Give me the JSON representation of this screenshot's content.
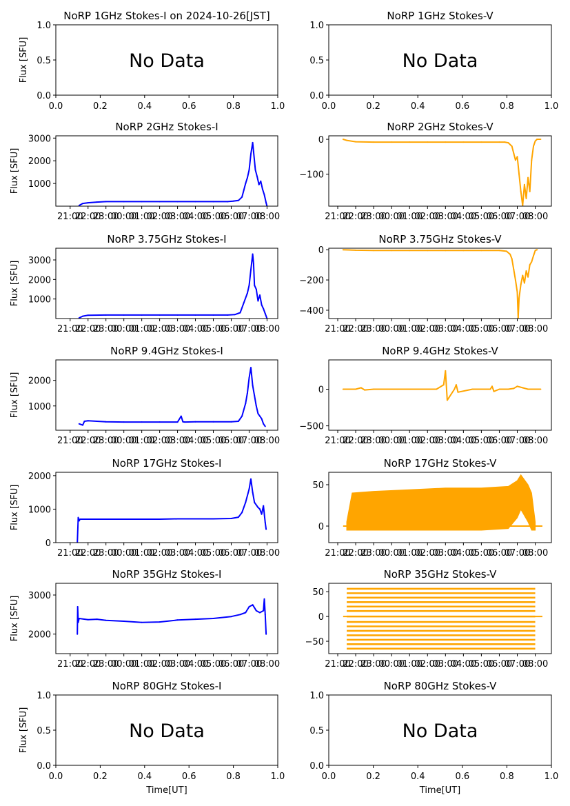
{
  "figure": {
    "xlabel": "Time[UT]",
    "time_ticks": [
      "21:00",
      "22:00",
      "23:00",
      "00:00",
      "01:00",
      "02:00",
      "03:00",
      "04:00",
      "05:00",
      "06:00",
      "07:00",
      "08:00"
    ],
    "colors": {
      "stokes_i": "#0000ff",
      "stokes_v": "#ffa500",
      "axis": "#000000"
    }
  },
  "chart_data": [
    {
      "id": "p1i",
      "type": "line",
      "title": "NoRP 1GHz Stokes-I on 2024-10-26[JST]",
      "ylabel": "Flux [SFU]",
      "no_data": true,
      "no_data_text": "No Data",
      "xlim": [
        0,
        1
      ],
      "ylim": [
        0,
        1
      ],
      "x_tick_labels": [
        "0.0",
        "0.2",
        "0.4",
        "0.6",
        "0.8",
        "1.0"
      ],
      "y_ticks": [
        0,
        0.5,
        1
      ],
      "y_tick_labels": [
        "0.0",
        "0.5",
        "1.0"
      ]
    },
    {
      "id": "p1v",
      "type": "line",
      "title": "NoRP 1GHz Stokes-V",
      "ylabel": "",
      "no_data": true,
      "no_data_text": "No Data",
      "xlim": [
        0,
        1
      ],
      "ylim": [
        0,
        1
      ],
      "x_tick_labels": [
        "0.0",
        "0.2",
        "0.4",
        "0.6",
        "0.8",
        "1.0"
      ],
      "y_ticks": [
        0,
        0.5,
        1
      ],
      "y_tick_labels": [
        "0.0",
        "0.5",
        "1.0"
      ]
    },
    {
      "id": "p2i",
      "type": "line",
      "title": "NoRP 2GHz Stokes-I",
      "ylabel": "Flux [SFU]",
      "no_data": false,
      "color": "#0000ff",
      "xlim": [
        -0.8,
        11.6
      ],
      "ylim": [
        0,
        3100
      ],
      "y_ticks": [
        1000,
        2000,
        3000
      ],
      "y_tick_labels": [
        "1000",
        "2000",
        "3000"
      ],
      "x": [
        0.5,
        0.7,
        1.0,
        1.5,
        2.0,
        3.0,
        4.0,
        5.0,
        6.0,
        7.0,
        8.0,
        8.8,
        9.1,
        9.4,
        9.6,
        9.7,
        9.8,
        9.9,
        10.0,
        10.1,
        10.2,
        10.25,
        10.35,
        10.45,
        10.55,
        10.65,
        10.75,
        10.85,
        10.95,
        11.0
      ],
      "values": [
        30,
        120,
        150,
        180,
        200,
        200,
        200,
        200,
        200,
        200,
        200,
        200,
        220,
        250,
        400,
        700,
        1000,
        1250,
        1600,
        2300,
        2800,
        2400,
        1600,
        1300,
        950,
        1100,
        750,
        500,
        150,
        0
      ]
    },
    {
      "id": "p2v",
      "type": "line",
      "title": "NoRP 2GHz Stokes-V",
      "ylabel": "",
      "no_data": false,
      "color": "#ffa500",
      "xlim": [
        -0.5,
        11.9
      ],
      "ylim": [
        -192,
        10
      ],
      "y_ticks": [
        0,
        -100
      ],
      "y_tick_labels": [
        "0",
        "−100"
      ],
      "x": [
        0.3,
        0.5,
        1.0,
        2.0,
        3.0,
        4.0,
        5.0,
        6.0,
        7.0,
        8.0,
        9.0,
        9.3,
        9.5,
        9.7,
        9.8,
        9.9,
        10.0,
        10.1,
        10.2,
        10.3,
        10.4,
        10.5,
        10.6,
        10.7,
        10.8,
        10.9,
        11.0,
        11.1,
        11.3
      ],
      "values": [
        0,
        -3,
        -7,
        -8,
        -8,
        -8,
        -8,
        -8,
        -8,
        -8,
        -8,
        -8,
        -10,
        -20,
        -40,
        -60,
        -50,
        -100,
        -150,
        -190,
        -130,
        -170,
        -110,
        -150,
        -60,
        -20,
        -5,
        0,
        0
      ]
    },
    {
      "id": "p3i",
      "type": "line",
      "title": "NoRP 3.75GHz Stokes-I",
      "ylabel": "Flux [SFU]",
      "no_data": false,
      "color": "#0000ff",
      "xlim": [
        -0.8,
        11.6
      ],
      "ylim": [
        0,
        3600
      ],
      "y_ticks": [
        1000,
        2000,
        3000
      ],
      "y_tick_labels": [
        "1000",
        "2000",
        "3000"
      ],
      "x": [
        0.5,
        0.7,
        1.0,
        2.0,
        3.0,
        4.0,
        5.0,
        6.0,
        7.0,
        8.0,
        8.8,
        9.2,
        9.5,
        9.7,
        9.9,
        10.0,
        10.1,
        10.2,
        10.25,
        10.3,
        10.4,
        10.5,
        10.6,
        10.7,
        10.8,
        10.9,
        11.0
      ],
      "values": [
        30,
        120,
        170,
        180,
        180,
        180,
        180,
        180,
        180,
        180,
        180,
        200,
        300,
        800,
        1300,
        1700,
        2500,
        3300,
        2800,
        1700,
        1500,
        900,
        1200,
        700,
        500,
        250,
        0
      ]
    },
    {
      "id": "p3v",
      "type": "line",
      "title": "NoRP 3.75GHz Stokes-V",
      "ylabel": "",
      "no_data": false,
      "color": "#ffa500",
      "xlim": [
        -0.5,
        11.9
      ],
      "ylim": [
        -455,
        10
      ],
      "y_ticks": [
        0,
        -200,
        -400
      ],
      "y_tick_labels": [
        "0",
        "−200",
        "−400"
      ],
      "x": [
        0.3,
        1.0,
        2.0,
        3.0,
        4.0,
        5.0,
        6.0,
        7.0,
        8.0,
        9.0,
        9.4,
        9.6,
        9.7,
        9.8,
        9.9,
        10.0,
        10.05,
        10.1,
        10.2,
        10.3,
        10.4,
        10.5,
        10.6,
        10.7,
        10.8,
        10.9,
        11.0,
        11.1
      ],
      "values": [
        0,
        -3,
        -5,
        -5,
        -5,
        -5,
        -5,
        -5,
        -5,
        -5,
        -10,
        -30,
        -60,
        -130,
        -200,
        -280,
        -450,
        -320,
        -230,
        -170,
        -220,
        -140,
        -180,
        -100,
        -80,
        -40,
        -5,
        0
      ]
    },
    {
      "id": "p4i",
      "type": "line",
      "title": "NoRP 9.4GHz Stokes-I",
      "ylabel": "Flux [SFU]",
      "no_data": false,
      "color": "#0000ff",
      "xlim": [
        -0.8,
        11.6
      ],
      "ylim": [
        50,
        2800
      ],
      "y_ticks": [
        1000,
        2000
      ],
      "y_tick_labels": [
        "1000",
        "2000"
      ],
      "x": [
        0.5,
        0.7,
        0.8,
        1.0,
        2.0,
        3.0,
        4.0,
        5.0,
        6.0,
        6.2,
        6.3,
        6.4,
        7.0,
        8.0,
        9.0,
        9.4,
        9.6,
        9.8,
        9.9,
        10.0,
        10.1,
        10.2,
        10.3,
        10.4,
        10.5,
        10.6,
        10.7,
        10.8,
        10.9
      ],
      "values": [
        300,
        250,
        400,
        420,
        380,
        370,
        370,
        370,
        370,
        600,
        380,
        370,
        380,
        380,
        380,
        400,
        600,
        1100,
        1500,
        2100,
        2500,
        1800,
        1400,
        1000,
        700,
        600,
        500,
        300,
        200
      ]
    },
    {
      "id": "p4v",
      "type": "line",
      "title": "NoRP 9.4GHz Stokes-V",
      "ylabel": "",
      "no_data": false,
      "color": "#ffa500",
      "xlim": [
        -0.5,
        11.9
      ],
      "ylim": [
        -560,
        400
      ],
      "y_ticks": [
        0,
        -500
      ],
      "y_tick_labels": [
        "0",
        "−500"
      ],
      "x": [
        0.3,
        1.0,
        1.3,
        1.5,
        2.0,
        3.0,
        4.0,
        5.5,
        5.9,
        6.0,
        6.1,
        6.5,
        6.6,
        6.7,
        7.5,
        8.0,
        8.5,
        8.6,
        8.7,
        9.0,
        9.5,
        9.8,
        10.0,
        10.3,
        10.6,
        11.0,
        11.3
      ],
      "values": [
        0,
        0,
        20,
        -10,
        0,
        0,
        0,
        0,
        60,
        250,
        -150,
        0,
        60,
        -40,
        0,
        0,
        0,
        40,
        -30,
        0,
        0,
        10,
        40,
        20,
        0,
        0,
        0
      ]
    },
    {
      "id": "p5i",
      "type": "line",
      "title": "NoRP 17GHz Stokes-I",
      "ylabel": "Flux [SFU]",
      "no_data": false,
      "color": "#0000ff",
      "xlim": [
        -0.8,
        11.6
      ],
      "ylim": [
        0,
        2100
      ],
      "y_ticks": [
        0,
        1000,
        2000
      ],
      "y_tick_labels": [
        "0",
        "1000",
        "2000"
      ],
      "x": [
        0.4,
        0.45,
        0.5,
        0.55,
        1.0,
        2.0,
        3.0,
        4.0,
        5.0,
        6.0,
        7.0,
        8.0,
        9.0,
        9.4,
        9.6,
        9.8,
        10.0,
        10.1,
        10.2,
        10.3,
        10.5,
        10.6,
        10.7,
        10.8,
        10.9,
        10.95
      ],
      "values": [
        0,
        750,
        650,
        700,
        700,
        700,
        700,
        700,
        700,
        710,
        710,
        710,
        720,
        760,
        900,
        1200,
        1600,
        1900,
        1500,
        1200,
        1050,
        1000,
        850,
        1100,
        600,
        400
      ]
    },
    {
      "id": "p5v",
      "type": "band",
      "title": "NoRP 17GHz Stokes-V",
      "ylabel": "",
      "no_data": false,
      "color": "#ffa500",
      "xlim": [
        -0.5,
        11.9
      ],
      "ylim": [
        -20,
        65
      ],
      "y_ticks": [
        0,
        50
      ],
      "y_tick_labels": [
        "0",
        "50"
      ],
      "x": [
        0.5,
        0.8,
        2.0,
        4.0,
        6.0,
        8.0,
        9.5,
        10.0,
        10.2,
        10.6,
        10.8,
        11.0
      ],
      "upper": [
        5,
        40,
        42,
        44,
        46,
        46,
        48,
        55,
        62,
        50,
        40,
        5
      ],
      "lower": [
        -5,
        -5,
        -5,
        -5,
        -5,
        -5,
        -3,
        10,
        20,
        5,
        -5,
        -5
      ],
      "baseline": 0
    },
    {
      "id": "p6i",
      "type": "line",
      "title": "NoRP 35GHz Stokes-I",
      "ylabel": "Flux [SFU]",
      "no_data": false,
      "color": "#0000ff",
      "xlim": [
        -0.8,
        11.6
      ],
      "ylim": [
        1500,
        3300
      ],
      "y_ticks": [
        2000,
        3000
      ],
      "y_tick_labels": [
        "2000",
        "3000"
      ],
      "x": [
        0.4,
        0.42,
        0.45,
        0.5,
        1.0,
        1.5,
        2.0,
        3.0,
        4.0,
        5.0,
        6.0,
        7.0,
        8.0,
        9.0,
        9.5,
        9.8,
        10.0,
        10.2,
        10.4,
        10.6,
        10.8,
        10.85,
        10.9,
        10.95
      ],
      "values": [
        2000,
        2700,
        2300,
        2400,
        2370,
        2380,
        2350,
        2330,
        2300,
        2310,
        2360,
        2380,
        2400,
        2450,
        2500,
        2550,
        2700,
        2750,
        2600,
        2550,
        2600,
        2900,
        2500,
        2000
      ]
    },
    {
      "id": "p6v",
      "type": "levels",
      "title": "NoRP 35GHz Stokes-V",
      "ylabel": "",
      "no_data": false,
      "color": "#ffa500",
      "xlim": [
        -0.5,
        11.9
      ],
      "ylim": [
        -75,
        67
      ],
      "y_ticks": [
        -50,
        0,
        50
      ],
      "y_tick_labels": [
        "−50",
        "0",
        "50"
      ],
      "x_start": 0.5,
      "x_end": 11.0,
      "levels": [
        -65,
        -56,
        -47,
        -38,
        -29,
        -20,
        -11,
        0,
        11,
        20,
        29,
        38,
        47,
        56
      ]
    },
    {
      "id": "p7i",
      "type": "line",
      "title": "NoRP 80GHz Stokes-I",
      "ylabel": "Flux [SFU]",
      "no_data": true,
      "no_data_text": "No Data",
      "xlim": [
        0,
        1
      ],
      "ylim": [
        0,
        1
      ],
      "x_tick_labels": [
        "0.0",
        "0.2",
        "0.4",
        "0.6",
        "0.8",
        "1.0"
      ],
      "y_ticks": [
        0,
        0.5,
        1
      ],
      "y_tick_labels": [
        "0.0",
        "0.5",
        "1.0"
      ],
      "xlabel": "Time[UT]"
    },
    {
      "id": "p7v",
      "type": "line",
      "title": "NoRP 80GHz Stokes-V",
      "ylabel": "",
      "no_data": true,
      "no_data_text": "No Data",
      "xlim": [
        0,
        1
      ],
      "ylim": [
        0,
        1
      ],
      "x_tick_labels": [
        "0.0",
        "0.2",
        "0.4",
        "0.6",
        "0.8",
        "1.0"
      ],
      "y_ticks": [
        0,
        0.5,
        1
      ],
      "y_tick_labels": [
        "0.0",
        "0.5",
        "1.0"
      ],
      "xlabel": "Time[UT]"
    }
  ]
}
